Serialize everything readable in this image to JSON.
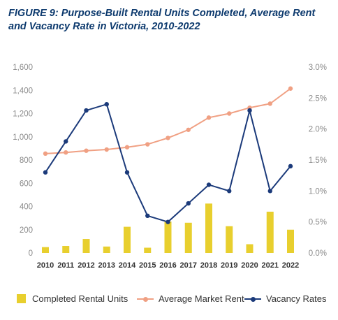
{
  "title": "FIGURE 9: Purpose-Built Rental Units Completed, Average Rent and Vacancy Rate in Victoria, 2010-2022",
  "colors": {
    "bars": "#e8cf2e",
    "rent": "#f0a083",
    "vacancy": "#1b3a7a",
    "axis_text": "#8a8a8a",
    "title": "#0d3a6e"
  },
  "legend": {
    "bars_label": "Completed Rental Units",
    "rent_label": "Average Market Rent",
    "vacancy_label": "Vacancy Rates"
  },
  "chart_data": {
    "type": "bar",
    "categories": [
      "2010",
      "2011",
      "2012",
      "2013",
      "2014",
      "2015",
      "2016",
      "2017",
      "2018",
      "2019",
      "2020",
      "2021",
      "2022"
    ],
    "left_axis": {
      "ylim": [
        0,
        1600
      ],
      "ticks": [
        0,
        200,
        400,
        600,
        800,
        1000,
        1200,
        1400,
        1600
      ],
      "tick_labels": [
        "0",
        "200",
        "400",
        "600",
        "800",
        "1,000",
        "1,200",
        "1,400",
        "1,600"
      ]
    },
    "right_axis": {
      "ylim": [
        0,
        3.0
      ],
      "ticks": [
        0,
        0.5,
        1.0,
        1.5,
        2.0,
        2.5,
        3.0
      ],
      "tick_labels": [
        "0.0%",
        "0.5%",
        "1.0%",
        "1.5%",
        "2.0%",
        "2.5%",
        "3.0%"
      ]
    },
    "legend_position": "bottom",
    "grid": false,
    "series": [
      {
        "name": "Completed Rental Units",
        "type": "bar",
        "axis": "left",
        "values": [
          50,
          60,
          120,
          55,
          225,
          45,
          270,
          260,
          425,
          230,
          75,
          355,
          200
        ]
      },
      {
        "name": "Average Market Rent",
        "type": "line",
        "axis": "left",
        "values": [
          855,
          865,
          880,
          890,
          910,
          935,
          990,
          1060,
          1165,
          1200,
          1250,
          1285,
          1415
        ]
      },
      {
        "name": "Vacancy Rates",
        "type": "line",
        "axis": "right",
        "values": [
          1.3,
          1.8,
          2.3,
          2.4,
          1.3,
          0.6,
          0.5,
          0.8,
          1.1,
          1.0,
          2.3,
          1.0,
          1.4
        ]
      }
    ]
  }
}
